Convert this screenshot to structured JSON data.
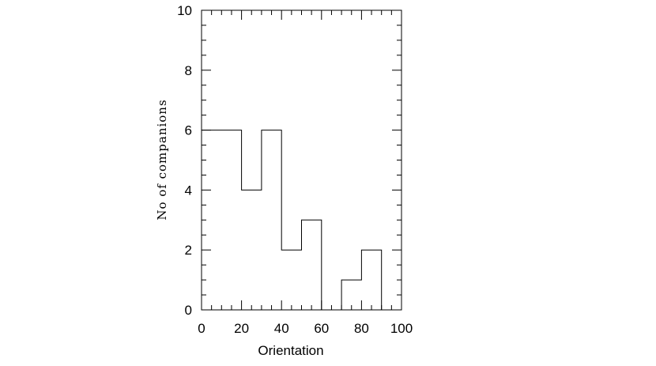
{
  "chart_data": {
    "type": "bar",
    "bins": [
      {
        "x0": 0,
        "x1": 20,
        "value": 6
      },
      {
        "x0": 20,
        "x1": 30,
        "value": 4
      },
      {
        "x0": 30,
        "x1": 40,
        "value": 6
      },
      {
        "x0": 40,
        "x1": 50,
        "value": 2
      },
      {
        "x0": 50,
        "x1": 60,
        "value": 3
      },
      {
        "x0": 60,
        "x1": 70,
        "value": 0
      },
      {
        "x0": 70,
        "x1": 80,
        "value": 1
      },
      {
        "x0": 80,
        "x1": 90,
        "value": 2
      }
    ],
    "title": "",
    "xlabel": "Orientation",
    "ylabel": "No of companions",
    "xlim": [
      0,
      100
    ],
    "ylim": [
      0,
      10
    ],
    "xticks": [
      0,
      20,
      40,
      60,
      80,
      100
    ],
    "yticks": [
      0,
      2,
      4,
      6,
      8,
      10
    ],
    "grid": false,
    "style": "step-histogram",
    "line_color": "#000000"
  }
}
